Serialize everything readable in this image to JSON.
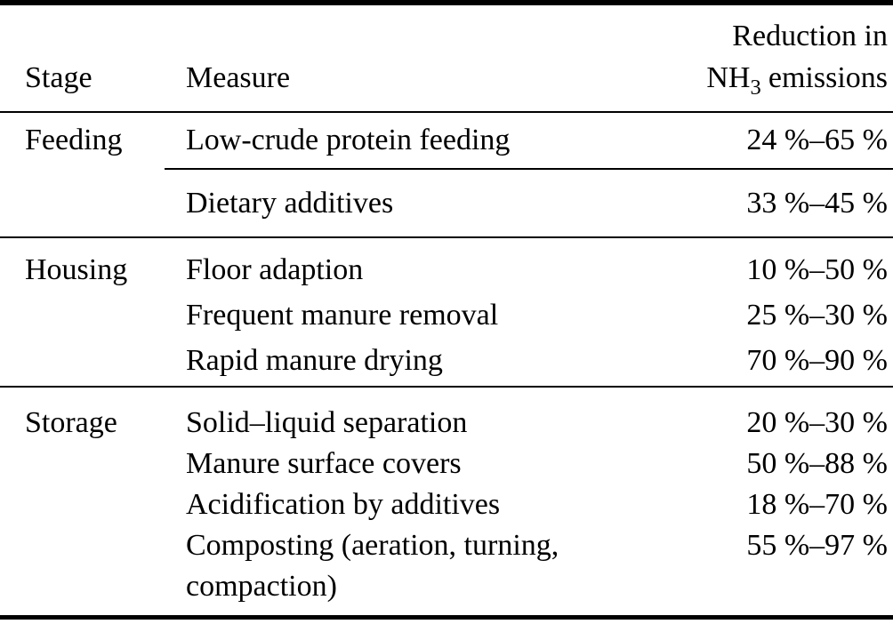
{
  "table": {
    "colors": {
      "background": "#ffffff",
      "text": "#000000",
      "rule": "#000000"
    },
    "header": {
      "stage": "Stage",
      "measure": "Measure",
      "reduction_line1": "Reduction in",
      "reduction_line2_pre": "NH",
      "reduction_line2_sub": "3",
      "reduction_line2_post": "emissions"
    },
    "sections": [
      {
        "stage": "Feeding",
        "rows": [
          {
            "measure_lines": [
              "Low-crude protein feeding"
            ],
            "reduction": "24 %–65 %"
          },
          {
            "measure_lines": [
              "Dietary additives"
            ],
            "reduction": "33 %–45 %"
          }
        ]
      },
      {
        "stage": "Housing",
        "rows": [
          {
            "measure_lines": [
              "Floor adaption"
            ],
            "reduction": "10 %–50 %"
          },
          {
            "measure_lines": [
              "Frequent manure removal"
            ],
            "reduction": "25 %–30 %"
          },
          {
            "measure_lines": [
              "Rapid manure drying"
            ],
            "reduction": "70 %–90 %"
          }
        ]
      },
      {
        "stage": "Storage",
        "rows": [
          {
            "measure_lines": [
              "Solid–liquid separation"
            ],
            "reduction": "20 %–30 %"
          },
          {
            "measure_lines": [
              "Manure surface covers"
            ],
            "reduction": "50 %–88 %"
          },
          {
            "measure_lines": [
              "Acidification by additives"
            ],
            "reduction": "18 %–70 %"
          },
          {
            "measure_lines": [
              "Composting (aeration, turning,",
              "compaction)"
            ],
            "reduction": "55 %–97 %"
          }
        ]
      }
    ]
  }
}
